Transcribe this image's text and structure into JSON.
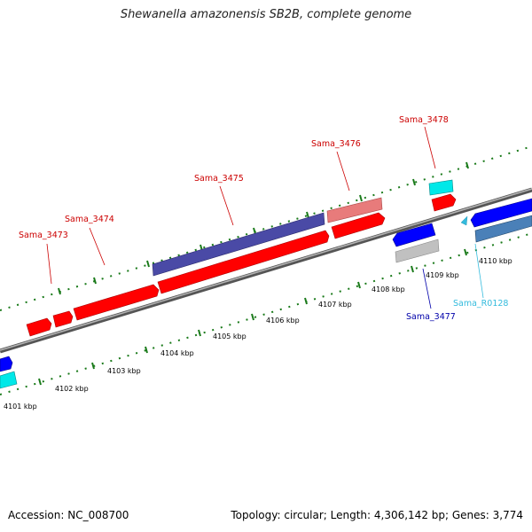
{
  "title": "Shewanella amazonensis SB2B, complete genome",
  "footer": {
    "accession": "Accession: NC_008700",
    "summary": "Topology: circular; Length: 4,306,142 bp; Genes: 3,774"
  },
  "colors": {
    "cds_red": "#ff0000",
    "cds_blue": "#0000ff",
    "cds_navy": "#4a4aa6",
    "cds_pink": "#e87b7b",
    "cds_cyan": "#00e8e8",
    "cds_gray": "#c0c0c0",
    "cds_steel": "#4a80b8",
    "backbone": "#8a8a8a",
    "tick_green": "#1a7a1a",
    "label_red": "#cc0000",
    "label_blue": "#0000aa",
    "label_cyan": "#33bbdd"
  },
  "scale": {
    "kbp_labels": [
      "4101 kbp",
      "4102 kbp",
      "4103 kbp",
      "4104 kbp",
      "4105 kbp",
      "4106 kbp",
      "4107 kbp",
      "4108 kbp",
      "4109 kbp",
      "4110 kbp"
    ]
  },
  "gene_labels": {
    "sama_3473": "Sama_3473",
    "sama_3474": "Sama_3474",
    "sama_3475": "Sama_3475",
    "sama_3476": "Sama_3476",
    "sama_3477": "Sama_3477",
    "sama_3478": "Sama_3478",
    "sama_r0128": "Sama_R0128"
  }
}
